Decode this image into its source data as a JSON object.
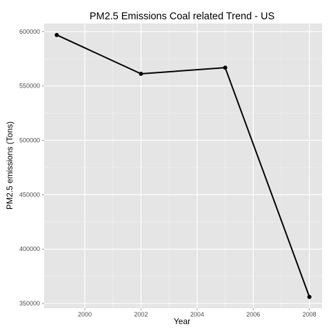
{
  "chart_data": {
    "type": "line",
    "title": "PM2.5 Emissions Coal related Trend - US",
    "xlabel": "Year",
    "ylabel": "PM2.5 emissions (Tons)",
    "x": [
      1999,
      2002,
      2005,
      2008
    ],
    "series": [
      {
        "values": [
          596900,
          561200,
          566800,
          356000
        ]
      }
    ],
    "xlim": [
      1998.55,
      2008.45
    ],
    "ylim": [
      345600,
      607500
    ],
    "x_ticks": [
      2000,
      2002,
      2004,
      2006,
      2008
    ],
    "x_tick_labels": [
      "2000",
      "2002",
      "2004",
      "2006",
      "2008"
    ],
    "y_ticks": [
      350000,
      400000,
      450000,
      500000,
      550000,
      600000
    ],
    "y_tick_labels": [
      "350000",
      "400000",
      "450000",
      "500000",
      "550000",
      "600000"
    ],
    "grid": true,
    "legend": "none",
    "colors": {
      "panel": "#e5e5e5",
      "grid_major": "#ffffff",
      "grid_minor": "#f2f2f2",
      "line": "#000000",
      "point": "#000000"
    }
  }
}
